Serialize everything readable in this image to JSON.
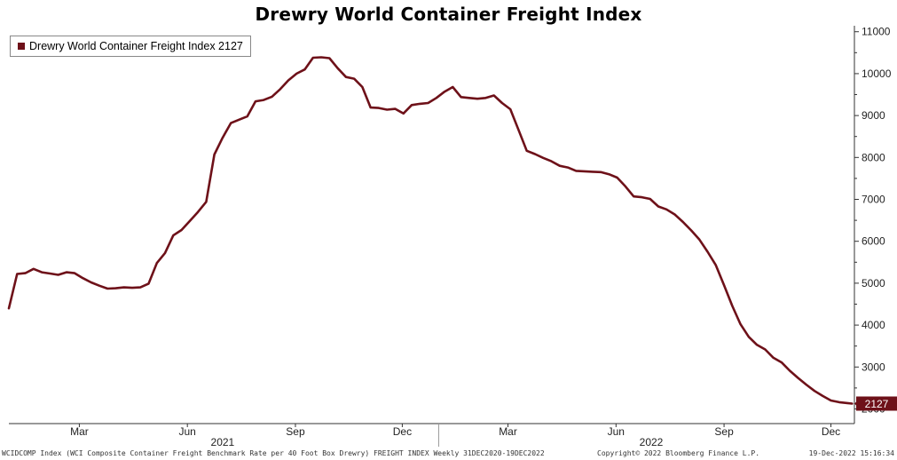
{
  "chart_data": {
    "type": "line",
    "title": "Drewry World Container Freight Index",
    "series": [
      {
        "name": "Drewry World Container Freight Index 2127",
        "color": "#6e1119",
        "x": [
          "2020-12-31",
          "2021-01-07",
          "2021-01-14",
          "2021-01-21",
          "2021-01-28",
          "2021-02-04",
          "2021-02-11",
          "2021-02-18",
          "2021-02-25",
          "2021-03-04",
          "2021-03-11",
          "2021-03-18",
          "2021-03-25",
          "2021-04-01",
          "2021-04-08",
          "2021-04-15",
          "2021-04-22",
          "2021-04-29",
          "2021-05-06",
          "2021-05-13",
          "2021-05-20",
          "2021-05-27",
          "2021-06-03",
          "2021-06-10",
          "2021-06-17",
          "2021-06-24",
          "2021-07-01",
          "2021-07-08",
          "2021-07-15",
          "2021-07-22",
          "2021-07-29",
          "2021-08-05",
          "2021-08-12",
          "2021-08-19",
          "2021-08-26",
          "2021-09-02",
          "2021-09-09",
          "2021-09-16",
          "2021-09-23",
          "2021-09-30",
          "2021-10-07",
          "2021-10-14",
          "2021-10-21",
          "2021-10-28",
          "2021-11-04",
          "2021-11-11",
          "2021-11-18",
          "2021-11-25",
          "2021-12-02",
          "2021-12-09",
          "2021-12-16",
          "2021-12-23",
          "2021-12-30",
          "2022-01-06",
          "2022-01-13",
          "2022-01-20",
          "2022-01-27",
          "2022-02-03",
          "2022-02-10",
          "2022-02-17",
          "2022-02-24",
          "2022-03-03",
          "2022-03-10",
          "2022-03-17",
          "2022-03-24",
          "2022-03-31",
          "2022-04-07",
          "2022-04-14",
          "2022-04-21",
          "2022-04-28",
          "2022-05-05",
          "2022-05-12",
          "2022-05-19",
          "2022-05-26",
          "2022-06-02",
          "2022-06-09",
          "2022-06-16",
          "2022-06-23",
          "2022-06-30",
          "2022-07-07",
          "2022-07-14",
          "2022-07-21",
          "2022-07-28",
          "2022-08-04",
          "2022-08-11",
          "2022-08-18",
          "2022-08-25",
          "2022-09-01",
          "2022-09-08",
          "2022-09-15",
          "2022-09-22",
          "2022-09-29",
          "2022-10-06",
          "2022-10-13",
          "2022-10-20",
          "2022-10-27",
          "2022-11-03",
          "2022-11-10",
          "2022-11-17",
          "2022-11-24",
          "2022-12-01",
          "2022-12-08",
          "2022-12-15",
          "2022-12-19"
        ],
        "values": [
          4400,
          5220,
          5240,
          5340,
          5260,
          5230,
          5200,
          5260,
          5240,
          5120,
          5020,
          4940,
          4870,
          4880,
          4900,
          4890,
          4900,
          4990,
          5480,
          5720,
          6140,
          6270,
          6480,
          6700,
          6940,
          8070,
          8470,
          8820,
          8900,
          8980,
          9340,
          9370,
          9450,
          9630,
          9840,
          10000,
          10100,
          10380,
          10390,
          10370,
          10130,
          9920,
          9880,
          9680,
          9190,
          9180,
          9140,
          9160,
          9050,
          9250,
          9280,
          9300,
          9420,
          9570,
          9680,
          9440,
          9420,
          9400,
          9420,
          9480,
          9300,
          9150,
          8660,
          8160,
          8080,
          7990,
          7910,
          7800,
          7760,
          7680,
          7670,
          7660,
          7650,
          7600,
          7520,
          7310,
          7070,
          7050,
          7010,
          6830,
          6760,
          6640,
          6460,
          6260,
          6040,
          5750,
          5430,
          4950,
          4460,
          4020,
          3720,
          3530,
          3420,
          3220,
          3110,
          2910,
          2740,
          2580,
          2430,
          2310,
          2200,
          2160,
          2140,
          2127
        ]
      }
    ],
    "last_value_label": "2127",
    "y_ticks": [
      "11000",
      "10000",
      "9000",
      "8000",
      "7000",
      "6000",
      "5000",
      "4000",
      "3000",
      "2000"
    ],
    "ylim": [
      1650,
      11100
    ],
    "x_axis": {
      "month_labels": [
        {
          "label": "Mar",
          "date": "2021-03-01"
        },
        {
          "label": "Jun",
          "date": "2021-06-01"
        },
        {
          "label": "Sep",
          "date": "2021-09-01"
        },
        {
          "label": "Dec",
          "date": "2021-12-01"
        },
        {
          "label": "Mar",
          "date": "2022-03-01"
        },
        {
          "label": "Jun",
          "date": "2022-06-01"
        },
        {
          "label": "Sep",
          "date": "2022-09-01"
        },
        {
          "label": "Dec",
          "date": "2022-12-01"
        }
      ],
      "year_labels": [
        {
          "label": "2021",
          "date": "2021-07-01"
        },
        {
          "label": "2022",
          "date": "2022-07-01"
        }
      ],
      "range": [
        "2020-12-31",
        "2022-12-21"
      ]
    },
    "grid": false,
    "legend_position": "top-left"
  },
  "footer": {
    "left": "WCIDCOMP Index (WCI Composite Container Freight Benchmark Rate per 40 Foot Box Drewry) FREIGHT INDEX  Weekly 31DEC2020-19DEC2022",
    "center": "Copyright© 2022 Bloomberg Finance L.P.",
    "right": "19-Dec-2022 15:16:34"
  }
}
